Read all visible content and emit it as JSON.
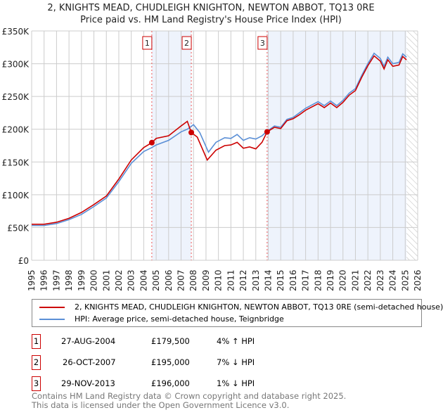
{
  "chart_data": {
    "type": "line",
    "title": "2, KNIGHTS MEAD, CHUDLEIGH KNIGHTON, NEWTON ABBOT, TQ13 0RE",
    "subtitle": "Price paid vs. HM Land Registry's House Price Index (HPI)",
    "xlim": [
      1995,
      2026
    ],
    "ylim": [
      0,
      350000
    ],
    "x_ticks": [
      "1995",
      "1996",
      "1997",
      "1998",
      "1999",
      "2000",
      "2001",
      "2002",
      "2003",
      "2004",
      "2005",
      "2006",
      "2007",
      "2008",
      "2009",
      "2010",
      "2011",
      "2012",
      "2013",
      "2014",
      "2015",
      "2016",
      "2017",
      "2018",
      "2019",
      "2020",
      "2021",
      "2022",
      "2023",
      "2024",
      "2025",
      "2026"
    ],
    "y_ticks": [
      {
        "v": 0,
        "label": "£0"
      },
      {
        "v": 50000,
        "label": "£50K"
      },
      {
        "v": 100000,
        "label": "£100K"
      },
      {
        "v": 150000,
        "label": "£150K"
      },
      {
        "v": 200000,
        "label": "£200K"
      },
      {
        "v": 250000,
        "label": "£250K"
      },
      {
        "v": 300000,
        "label": "£300K"
      },
      {
        "v": 350000,
        "label": "£350K"
      }
    ],
    "grid": true,
    "series": [
      {
        "name": "2, KNIGHTS MEAD, CHUDLEIGH KNIGHTON, NEWTON ABBOT, TQ13 0RE (semi-detached house)",
        "color": "#cc0000",
        "x": [
          1995,
          1996,
          1997,
          1998,
          1999,
          2000,
          2001,
          2002,
          2003,
          2004,
          2004.65,
          2005,
          2006,
          2007,
          2007.5,
          2007.82,
          2008.3,
          2009.1,
          2009.8,
          2010.5,
          2011,
          2011.5,
          2012,
          2012.5,
          2013,
          2013.5,
          2013.91,
          2014.5,
          2015,
          2015.5,
          2016,
          2016.5,
          2017,
          2018,
          2018.5,
          2019,
          2019.5,
          2020,
          2020.5,
          2021,
          2021.5,
          2022,
          2022.5,
          2023,
          2023.3,
          2023.6,
          2024,
          2024.5,
          2024.8,
          2025.1
        ],
        "y": [
          55000,
          55000,
          58000,
          64000,
          73000,
          85000,
          98000,
          124000,
          153000,
          172000,
          179500,
          186000,
          190000,
          205000,
          212000,
          195000,
          188000,
          153000,
          168000,
          175000,
          176000,
          180000,
          171000,
          173000,
          170000,
          180000,
          196000,
          203000,
          201000,
          213000,
          216000,
          222000,
          229000,
          239000,
          233000,
          240000,
          233000,
          241000,
          252000,
          259000,
          279000,
          297000,
          312000,
          304000,
          292000,
          306000,
          296000,
          298000,
          311000,
          306000
        ]
      },
      {
        "name": "HPI: Average price, semi-detached house, Teignbridge",
        "color": "#5b8fd6",
        "x": [
          1995,
          1996,
          1997,
          1998,
          1999,
          2000,
          2001,
          2002,
          2003,
          2004,
          2004.65,
          2005,
          2006,
          2007,
          2007.5,
          2008,
          2008.5,
          2009.2,
          2009.8,
          2010.5,
          2011,
          2011.5,
          2012,
          2012.5,
          2013,
          2013.5,
          2013.91,
          2014.5,
          2015,
          2015.5,
          2016,
          2016.5,
          2017,
          2018,
          2018.5,
          2019,
          2019.5,
          2020,
          2020.5,
          2021,
          2021.5,
          2022,
          2022.5,
          2023,
          2023.3,
          2023.6,
          2024,
          2024.5,
          2024.8,
          2025.1
        ],
        "y": [
          53000,
          53000,
          56000,
          62000,
          70000,
          82000,
          95000,
          120000,
          148000,
          166000,
          172000,
          176000,
          183000,
          196000,
          200000,
          207000,
          195000,
          165000,
          180000,
          187000,
          186000,
          192000,
          183000,
          187000,
          185000,
          190000,
          197000,
          205000,
          203000,
          215000,
          218000,
          225000,
          232000,
          242000,
          236000,
          243000,
          236000,
          244000,
          255000,
          262000,
          282000,
          300000,
          316000,
          308000,
          296000,
          310000,
          300000,
          302000,
          315000,
          310000
        ]
      }
    ],
    "sales": [
      {
        "n": "1",
        "x": 2004.65,
        "y": 179500
      },
      {
        "n": "2",
        "x": 2007.82,
        "y": 195000
      },
      {
        "n": "3",
        "x": 2013.91,
        "y": 196000
      }
    ],
    "legend_position": "below"
  },
  "table": [
    {
      "n": "1",
      "date": "27-AUG-2004",
      "price": "£179,500",
      "diff": "4% ↑ HPI"
    },
    {
      "n": "2",
      "date": "26-OCT-2007",
      "price": "£195,000",
      "diff": "7% ↓ HPI"
    },
    {
      "n": "3",
      "date": "29-NOV-2013",
      "price": "£196,000",
      "diff": "1% ↓ HPI"
    }
  ],
  "footer": [
    "Contains HM Land Registry data © Crown copyright and database right 2025.",
    "This data is licensed under the Open Government Licence v3.0."
  ]
}
